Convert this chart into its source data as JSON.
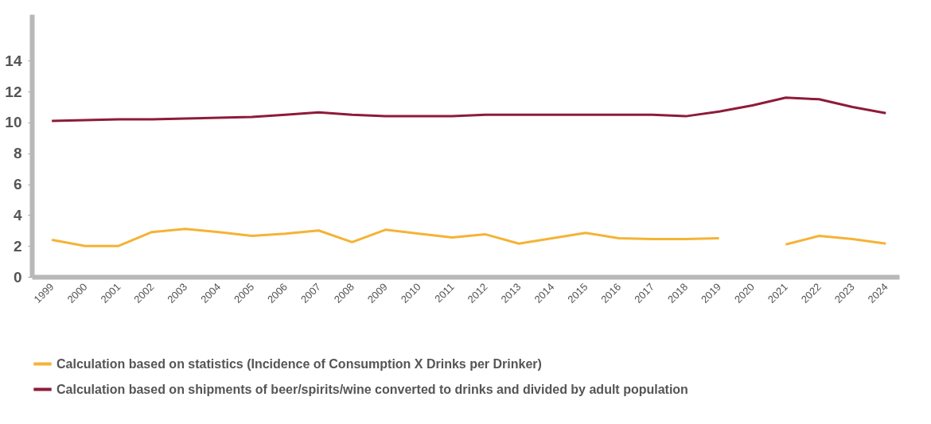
{
  "chart_data": {
    "type": "line",
    "categories": [
      "1999",
      "2000",
      "2001",
      "2002",
      "2003",
      "2004",
      "2005",
      "2006",
      "2007",
      "2008",
      "2009",
      "2010",
      "2011",
      "2012",
      "2013",
      "2014",
      "2015",
      "2016",
      "2017",
      "2018",
      "2019",
      "2020",
      "2021",
      "2022",
      "2023",
      "2024"
    ],
    "series": [
      {
        "name": "Calculation based on statistics (Incidence of Consumption X Drinks per Drinker)",
        "color": "#f5b335",
        "values": [
          2.4,
          2.0,
          2.0,
          2.9,
          3.1,
          2.9,
          2.65,
          2.8,
          3.0,
          2.25,
          3.05,
          2.8,
          2.55,
          2.75,
          2.15,
          2.5,
          2.85,
          2.5,
          2.45,
          2.45,
          2.5,
          null,
          2.1,
          2.65,
          2.45,
          2.15
        ]
      },
      {
        "name": "Calculation based on shipments of beer/spirits/wine converted to drinks and divided by adult population",
        "color": "#8e1b3a",
        "values": [
          10.1,
          10.15,
          10.2,
          10.2,
          10.25,
          10.3,
          10.35,
          10.5,
          10.65,
          10.5,
          10.4,
          10.4,
          10.4,
          10.5,
          10.5,
          10.5,
          10.5,
          10.5,
          10.5,
          10.4,
          10.7,
          11.1,
          11.6,
          11.5,
          11.0,
          10.6
        ]
      }
    ],
    "ylim": [
      0,
      17
    ],
    "yticks": [
      0,
      2,
      4,
      6,
      8,
      10,
      12,
      14
    ],
    "grid": false,
    "legend": "bottom",
    "marker": "none",
    "line_style": "solid"
  }
}
